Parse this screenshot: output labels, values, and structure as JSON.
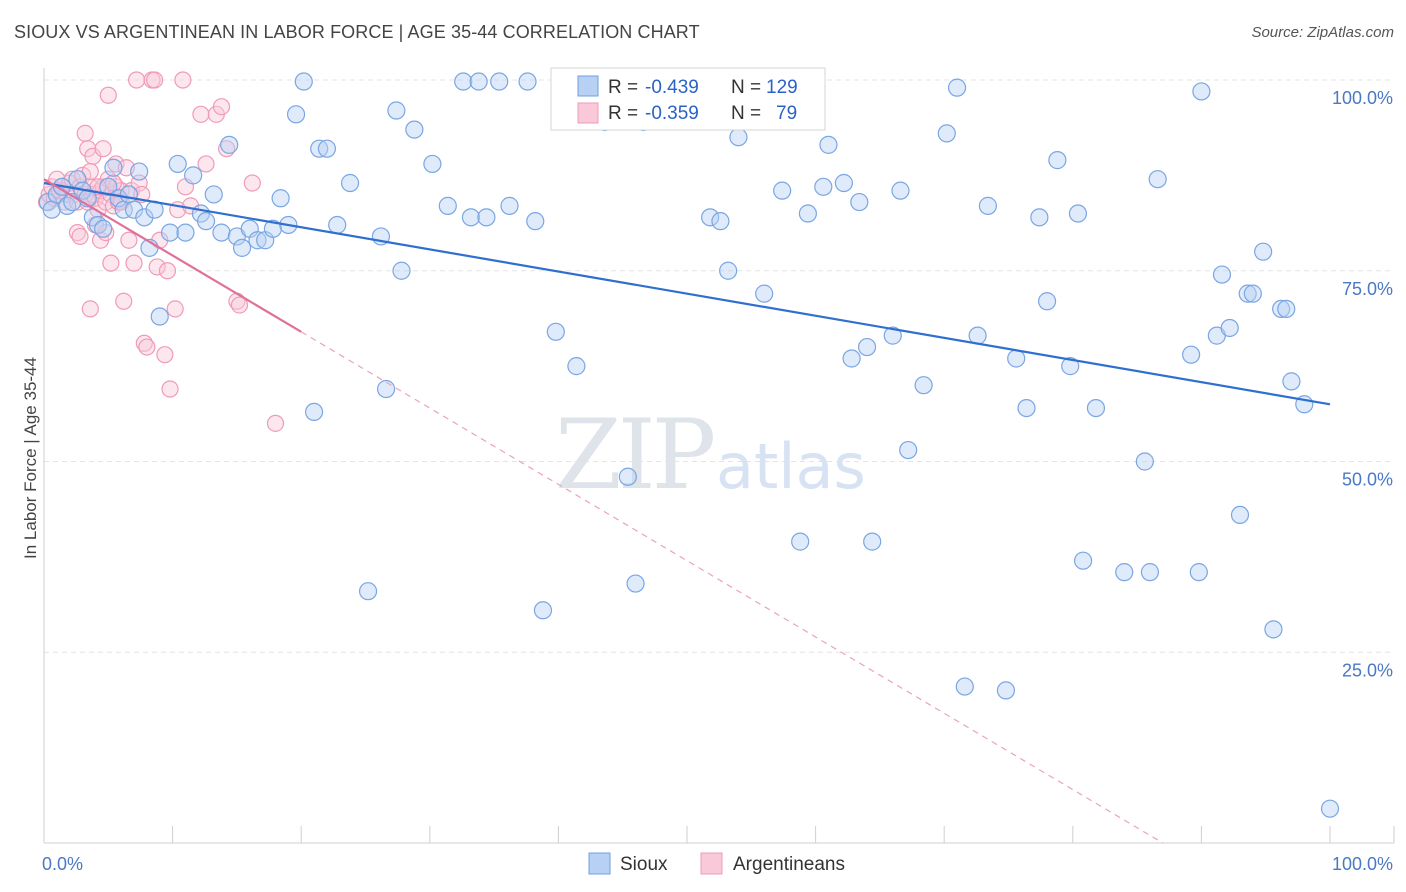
{
  "header": {
    "title": "SIOUX VS ARGENTINEAN IN LABOR FORCE | AGE 35-44 CORRELATION CHART",
    "source": "Source: ZipAtlas.com"
  },
  "watermark": {
    "zip": "ZIP",
    "atlas": "atlas"
  },
  "legend": {
    "rows": [
      {
        "r_label": "R =",
        "r_value": "-0.439",
        "n_label": "N =",
        "n_value": "129"
      },
      {
        "r_label": "R =",
        "r_value": "-0.359",
        "n_label": "N =",
        "n_value": "79"
      }
    ]
  },
  "bottom_legend": [
    "Sioux",
    "Argentineans"
  ],
  "chart_data": {
    "type": "scatter",
    "title": "SIOUX VS ARGENTINEAN IN LABOR FORCE | AGE 35-44 CORRELATION CHART",
    "xlabel": "",
    "ylabel": "In Labor Force | Age 35-44",
    "xlim": [
      0,
      100
    ],
    "ylim": [
      0,
      100
    ],
    "x_tick_labels": [
      "0.0%",
      "100.0%"
    ],
    "y_ticks": [
      25,
      50,
      75,
      100
    ],
    "y_tick_labels": [
      "25.0%",
      "50.0%",
      "75.0%",
      "100.0%"
    ],
    "grid": true,
    "colors": {
      "sioux": "#6f9fe0",
      "argentineans": "#f09ab8",
      "sioux_line": "#2f6fd0",
      "argentineans_line": "#e0709a",
      "tick": "#4a78c4"
    },
    "series": [
      {
        "name": "Sioux",
        "r": -0.439,
        "n": 129,
        "trend": {
          "x": [
            0,
            100
          ],
          "y": [
            86.5,
            57.5
          ],
          "style": "solid"
        },
        "points": [
          [
            0.3,
            84
          ],
          [
            0.6,
            83
          ],
          [
            1.0,
            85
          ],
          [
            1.4,
            86
          ],
          [
            1.8,
            83.5
          ],
          [
            2.2,
            84
          ],
          [
            2.6,
            87
          ],
          [
            3.0,
            85.5
          ],
          [
            3.4,
            84.5
          ],
          [
            3.8,
            82
          ],
          [
            4.2,
            81
          ],
          [
            4.6,
            80.5
          ],
          [
            5.0,
            86
          ],
          [
            5.4,
            88.5
          ],
          [
            5.8,
            84.5
          ],
          [
            6.2,
            83
          ],
          [
            6.6,
            85
          ],
          [
            7.0,
            83
          ],
          [
            7.4,
            88
          ],
          [
            7.8,
            82
          ],
          [
            8.2,
            78
          ],
          [
            8.6,
            83
          ],
          [
            9.0,
            69
          ],
          [
            9.8,
            80
          ],
          [
            10.4,
            89
          ],
          [
            11.0,
            80
          ],
          [
            11.6,
            87.5
          ],
          [
            12.2,
            82.5
          ],
          [
            12.6,
            81.5
          ],
          [
            13.2,
            85
          ],
          [
            13.8,
            80
          ],
          [
            14.4,
            91.5
          ],
          [
            15.0,
            79.5
          ],
          [
            15.4,
            78
          ],
          [
            16.0,
            80.5
          ],
          [
            16.6,
            79
          ],
          [
            17.2,
            79
          ],
          [
            17.8,
            80.5
          ],
          [
            18.4,
            84.5
          ],
          [
            19.0,
            81
          ],
          [
            19.6,
            95.5
          ],
          [
            20.2,
            99.8
          ],
          [
            21.0,
            56.5
          ],
          [
            21.4,
            91
          ],
          [
            22.0,
            91
          ],
          [
            22.8,
            81
          ],
          [
            23.8,
            86.5
          ],
          [
            25.2,
            33
          ],
          [
            26.2,
            79.5
          ],
          [
            26.6,
            59.5
          ],
          [
            27.4,
            96
          ],
          [
            27.8,
            75
          ],
          [
            28.8,
            93.5
          ],
          [
            30.2,
            89
          ],
          [
            31.4,
            83.5
          ],
          [
            32.6,
            99.8
          ],
          [
            33.2,
            82
          ],
          [
            33.8,
            99.8
          ],
          [
            34.4,
            82
          ],
          [
            35.4,
            99.8
          ],
          [
            36.2,
            83.5
          ],
          [
            37.6,
            99.8
          ],
          [
            38.2,
            81.5
          ],
          [
            38.8,
            30.5
          ],
          [
            39.8,
            67
          ],
          [
            40.4,
            99.8
          ],
          [
            41.4,
            62.5
          ],
          [
            42.6,
            99.8
          ],
          [
            43.0,
            99.8
          ],
          [
            43.6,
            94.5
          ],
          [
            44.4,
            99.8
          ],
          [
            45.4,
            48
          ],
          [
            46.0,
            34
          ],
          [
            46.2,
            99.8
          ],
          [
            46.6,
            94.5
          ],
          [
            50.2,
            99.8
          ],
          [
            51.8,
            82
          ],
          [
            52.6,
            81.5
          ],
          [
            53.2,
            75
          ],
          [
            54.0,
            92.5
          ],
          [
            56.0,
            72
          ],
          [
            57.4,
            85.5
          ],
          [
            58.8,
            39.5
          ],
          [
            59.4,
            82.5
          ],
          [
            60.6,
            86
          ],
          [
            61.0,
            91.5
          ],
          [
            62.2,
            86.5
          ],
          [
            62.8,
            63.5
          ],
          [
            63.4,
            84
          ],
          [
            64.0,
            65
          ],
          [
            64.4,
            39.5
          ],
          [
            66.0,
            66.5
          ],
          [
            66.6,
            85.5
          ],
          [
            67.2,
            51.5
          ],
          [
            68.4,
            60
          ],
          [
            70.2,
            93
          ],
          [
            71.0,
            99
          ],
          [
            71.6,
            20.5
          ],
          [
            72.6,
            66.5
          ],
          [
            73.4,
            83.5
          ],
          [
            74.8,
            20
          ],
          [
            75.6,
            63.5
          ],
          [
            76.4,
            57
          ],
          [
            77.4,
            82
          ],
          [
            78.0,
            71
          ],
          [
            78.8,
            89.5
          ],
          [
            79.8,
            62.5
          ],
          [
            80.4,
            82.5
          ],
          [
            80.8,
            37
          ],
          [
            81.8,
            57
          ],
          [
            84.0,
            35.5
          ],
          [
            85.6,
            50
          ],
          [
            86.0,
            35.5
          ],
          [
            86.6,
            87
          ],
          [
            89.2,
            64
          ],
          [
            89.8,
            35.5
          ],
          [
            90.0,
            98.5
          ],
          [
            91.2,
            66.5
          ],
          [
            91.6,
            74.5
          ],
          [
            92.2,
            67.5
          ],
          [
            93.0,
            43
          ],
          [
            93.6,
            72
          ],
          [
            94.0,
            72
          ],
          [
            94.8,
            77.5
          ],
          [
            95.6,
            28
          ],
          [
            96.2,
            70
          ],
          [
            96.6,
            70
          ],
          [
            97.0,
            60.5
          ],
          [
            98.0,
            57.5
          ],
          [
            100.0,
            4.5
          ]
        ]
      },
      {
        "name": "Argentineans",
        "r": -0.359,
        "n": 79,
        "trend": {
          "x": [
            0,
            20
          ],
          "y": [
            87,
            67
          ],
          "style": "solid"
        },
        "trend_extension": {
          "x": [
            20,
            87
          ],
          "y": [
            67,
            0
          ],
          "style": "dashed"
        },
        "points": [
          [
            0.2,
            84
          ],
          [
            0.4,
            85
          ],
          [
            0.6,
            86
          ],
          [
            0.8,
            84.5
          ],
          [
            1.0,
            87
          ],
          [
            1.2,
            85.5
          ],
          [
            1.4,
            86
          ],
          [
            1.6,
            84
          ],
          [
            1.8,
            85
          ],
          [
            2.0,
            86.5
          ],
          [
            2.2,
            87
          ],
          [
            2.4,
            85
          ],
          [
            2.6,
            84
          ],
          [
            2.8,
            86
          ],
          [
            3.0,
            87.5
          ],
          [
            3.2,
            85
          ],
          [
            3.4,
            84
          ],
          [
            3.6,
            86
          ],
          [
            3.8,
            85
          ],
          [
            4.0,
            84.5
          ],
          [
            4.2,
            83
          ],
          [
            4.4,
            85.5
          ],
          [
            4.6,
            86
          ],
          [
            4.8,
            84
          ],
          [
            5.0,
            87
          ],
          [
            5.2,
            85
          ],
          [
            5.4,
            83.5
          ],
          [
            5.6,
            86
          ],
          [
            5.8,
            84
          ],
          [
            6.0,
            85.5
          ],
          [
            2.6,
            80
          ],
          [
            2.8,
            79.5
          ],
          [
            3.2,
            93
          ],
          [
            3.4,
            91
          ],
          [
            3.6,
            70
          ],
          [
            3.8,
            90
          ],
          [
            4.0,
            81
          ],
          [
            4.2,
            86
          ],
          [
            4.4,
            79
          ],
          [
            4.6,
            91
          ],
          [
            4.8,
            80
          ],
          [
            5.2,
            76
          ],
          [
            5.4,
            86.5
          ],
          [
            5.6,
            89
          ],
          [
            5.8,
            84
          ],
          [
            6.0,
            84
          ],
          [
            6.2,
            71
          ],
          [
            6.4,
            88.5
          ],
          [
            6.6,
            79
          ],
          [
            6.8,
            85.5
          ],
          [
            7.0,
            76
          ],
          [
            7.2,
            100
          ],
          [
            7.4,
            86.5
          ],
          [
            7.6,
            85
          ],
          [
            7.8,
            65.5
          ],
          [
            8.0,
            65
          ],
          [
            8.4,
            100
          ],
          [
            8.6,
            100
          ],
          [
            8.8,
            75.5
          ],
          [
            9.0,
            79
          ],
          [
            9.4,
            64
          ],
          [
            9.6,
            75
          ],
          [
            9.8,
            59.5
          ],
          [
            10.2,
            70
          ],
          [
            10.4,
            83
          ],
          [
            10.8,
            100
          ],
          [
            11.0,
            86
          ],
          [
            11.4,
            83.5
          ],
          [
            12.2,
            95.5
          ],
          [
            12.6,
            89
          ],
          [
            13.4,
            95.5
          ],
          [
            13.8,
            96.5
          ],
          [
            14.2,
            91
          ],
          [
            15.0,
            71
          ],
          [
            15.2,
            70.5
          ],
          [
            16.2,
            86.5
          ],
          [
            18.0,
            55
          ],
          [
            5.0,
            98
          ],
          [
            3.6,
            88
          ]
        ]
      }
    ]
  }
}
